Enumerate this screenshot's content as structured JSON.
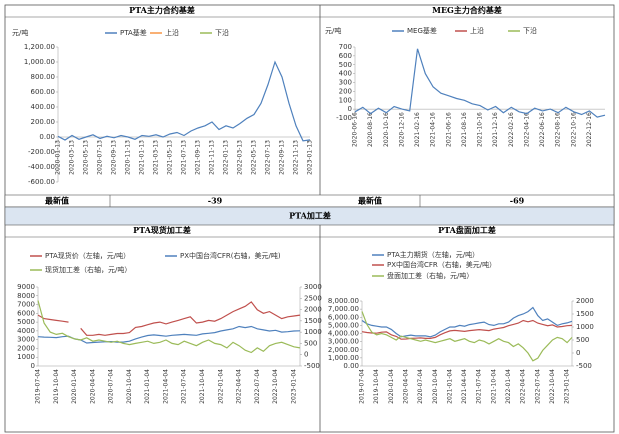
{
  "section_title": "PTA加工差",
  "summary": {
    "label_left": "最新值",
    "value_left": -39,
    "label_right": "最新值",
    "value_right": -69
  },
  "chart_data": [
    {
      "type": "line",
      "title": "PTA主力合约基差",
      "y_label": "元/吨",
      "categories": [
        "2020-01-13",
        null,
        "2020-03-13",
        null,
        "2020-05-13",
        null,
        "2020-07-13",
        null,
        "2020-09-13",
        null,
        "2020-11-13",
        null,
        "2021-01-13",
        null,
        "2021-03-13",
        null,
        "2021-05-13",
        null,
        "2021-07-13",
        null,
        "2021-09-13",
        null,
        "2021-11-13",
        null,
        "2022-01-13",
        null,
        "2022-03-13",
        null,
        "2022-05-13",
        null,
        "2022-07-13",
        null,
        "2022-09-13",
        null,
        "2022-11-13",
        null,
        "2023-01-13"
      ],
      "series": [
        {
          "name": "PTA基差",
          "color": "#4f81bd",
          "values": [
            10,
            -40,
            20,
            -30,
            0,
            30,
            -20,
            10,
            -10,
            20,
            0,
            -30,
            20,
            10,
            30,
            0,
            40,
            60,
            20,
            80,
            120,
            150,
            200,
            100,
            150,
            120,
            180,
            250,
            300,
            450,
            700,
            1000,
            800,
            450,
            150,
            -50,
            -39
          ]
        },
        {
          "name": "上沿",
          "color": "#f79646",
          "values": [
            null,
            null,
            null,
            null,
            null,
            null,
            null,
            null,
            null,
            null,
            null,
            null,
            null,
            null,
            null,
            null,
            null,
            null,
            null,
            null,
            null,
            null,
            null,
            null,
            null,
            null,
            null,
            null,
            null,
            null,
            null,
            null,
            null,
            null,
            null,
            null,
            null
          ]
        },
        {
          "name": "下沿",
          "color": "#9bbb59",
          "values": [
            null,
            null,
            null,
            null,
            null,
            null,
            null,
            null,
            null,
            null,
            null,
            null,
            null,
            null,
            null,
            null,
            null,
            null,
            null,
            null,
            null,
            null,
            null,
            null,
            null,
            null,
            null,
            null,
            null,
            null,
            null,
            null,
            null,
            null,
            null,
            null,
            null
          ]
        }
      ],
      "ylim": [
        -600,
        1200
      ],
      "yticks": [
        {
          "value": -600,
          "label": "-600.00"
        },
        {
          "value": -400,
          "label": "-400.00"
        },
        {
          "value": -200,
          "label": "-200.00"
        },
        {
          "value": 0,
          "label": "0.00"
        },
        {
          "value": 200,
          "label": "200.00"
        },
        {
          "value": 400,
          "label": "400.00"
        },
        {
          "value": 600,
          "label": "600.00"
        },
        {
          "value": 800,
          "label": "800.00"
        },
        {
          "value": 1000,
          "label": "1,000.00"
        },
        {
          "value": 1200,
          "label": "1,200.00"
        }
      ],
      "grid": false
    },
    {
      "type": "line",
      "title": "MEG主力合约基差",
      "y_label": "元/吨",
      "categories": [
        "2020-06-16",
        null,
        "2020-08-16",
        null,
        "2020-10-16",
        null,
        "2020-12-16",
        null,
        "2021-02-16",
        null,
        "2021-04-16",
        null,
        "2021-06-16",
        null,
        "2021-08-16",
        null,
        "2021-10-16",
        null,
        "2021-12-16",
        null,
        "2022-02-16",
        null,
        "2022-04-16",
        null,
        "2022-06-16",
        null,
        "2022-08-16",
        null,
        "2022-10-16",
        null,
        "2022-12-16",
        null,
        null
      ],
      "series": [
        {
          "name": "MEG基差",
          "color": "#4f81bd",
          "values": [
            -30,
            20,
            -50,
            10,
            -40,
            30,
            0,
            -20,
            680,
            400,
            250,
            180,
            150,
            120,
            100,
            60,
            40,
            -10,
            30,
            -40,
            20,
            -30,
            -50,
            10,
            -20,
            0,
            -40,
            20,
            -30,
            -60,
            -20,
            -90,
            -69
          ]
        },
        {
          "name": "上沿",
          "color": "#c0504d",
          "values": [
            null,
            null,
            null,
            null,
            null,
            null,
            null,
            null,
            null,
            null,
            null,
            null,
            null,
            null,
            null,
            null,
            null,
            null,
            null,
            null,
            null,
            null,
            null,
            null,
            null,
            null,
            null,
            null,
            null,
            null,
            null,
            null,
            null
          ]
        },
        {
          "name": "下沿",
          "color": "#9bbb59",
          "values": [
            null,
            null,
            null,
            null,
            null,
            null,
            null,
            null,
            null,
            null,
            null,
            null,
            null,
            null,
            null,
            null,
            null,
            null,
            null,
            null,
            null,
            null,
            null,
            null,
            null,
            null,
            null,
            null,
            null,
            null,
            null,
            null,
            null
          ]
        }
      ],
      "ylim": [
        -100,
        700
      ],
      "yticks": [
        -100,
        0,
        100,
        200,
        300,
        400,
        500,
        600,
        700
      ],
      "grid": false
    },
    {
      "type": "line",
      "title": "PTA现货加工差",
      "categories": [
        "2019-07-04",
        null,
        null,
        "2019-10-04",
        null,
        null,
        "2020-01-04",
        null,
        null,
        "2020-04-04",
        null,
        null,
        "2020-07-04",
        null,
        null,
        "2020-10-04",
        null,
        null,
        "2021-01-04",
        null,
        null,
        "2021-04-04",
        null,
        null,
        "2021-07-04",
        null,
        null,
        "2021-10-04",
        null,
        null,
        "2022-01-04",
        null,
        null,
        "2022-04-04",
        null,
        null,
        "2022-07-04",
        null,
        null,
        "2022-10-04",
        null,
        null,
        "2023-01-04",
        null
      ],
      "series": [
        {
          "name": "PTA现货价（左轴，元/吨）",
          "color": "#c0504d",
          "values": [
            5800,
            5400,
            5300,
            5200,
            5100,
            5000,
            null,
            4300,
            3500,
            3500,
            3600,
            3500,
            3600,
            3700,
            3700,
            3800,
            4400,
            4500,
            4700,
            4900,
            5000,
            4800,
            5000,
            5200,
            5400,
            5600,
            4900,
            5000,
            5200,
            5100,
            5400,
            5800,
            6200,
            6500,
            6800,
            7300,
            6400,
            6000,
            6200,
            5800,
            5400,
            5600,
            5700,
            5800
          ]
        },
        {
          "name": "PX中国台湾CFR(右轴，美元/吨)",
          "color": "#4f81bd",
          "axis": "y2",
          "values": [
            800,
            780,
            770,
            760,
            800,
            820,
            700,
            650,
            520,
            540,
            560,
            570,
            580,
            560,
            560,
            600,
            700,
            780,
            850,
            880,
            850,
            820,
            860,
            880,
            900,
            880,
            860,
            920,
            950,
            980,
            1050,
            1100,
            1150,
            1250,
            1200,
            1250,
            1150,
            1100,
            1050,
            1080,
            1000,
            1020,
            1050,
            1060
          ]
        },
        {
          "name": "现货加工差（右轴，元/吨）",
          "color": "#9bbb59",
          "axis": "y2",
          "values": [
            2400,
            1400,
            1000,
            900,
            950,
            800,
            700,
            650,
            750,
            600,
            650,
            600,
            550,
            600,
            500,
            450,
            500,
            550,
            600,
            500,
            550,
            650,
            500,
            450,
            600,
            500,
            400,
            550,
            650,
            500,
            450,
            300,
            550,
            400,
            200,
            100,
            300,
            150,
            400,
            500,
            550,
            450,
            350,
            300
          ]
        }
      ],
      "ylim": [
        0,
        9000
      ],
      "yticks": [
        0,
        1000,
        2000,
        3000,
        4000,
        5000,
        6000,
        7000,
        8000,
        9000
      ],
      "y2lim": [
        -500,
        3000
      ],
      "y2ticks": [
        -500,
        0,
        500,
        1000,
        1500,
        2000,
        2500,
        3000
      ],
      "grid": false
    },
    {
      "type": "line",
      "title": "PTA盘面加工差",
      "categories": [
        "2019-07-04",
        null,
        null,
        "2019-10-04",
        null,
        null,
        "2020-01-04",
        null,
        null,
        "2020-04-04",
        null,
        null,
        "2020-07-04",
        null,
        null,
        "2020-10-04",
        null,
        null,
        "2021-01-04",
        null,
        null,
        "2021-04-04",
        null,
        null,
        "2021-07-04",
        null,
        null,
        "2021-10-04",
        null,
        null,
        "2022-01-04",
        null,
        null,
        "2022-04-04",
        null,
        null,
        "2022-07-04",
        null,
        null,
        "2022-10-04",
        null,
        null,
        "2023-01-04",
        null
      ],
      "series": [
        {
          "name": "PTA主力期货（左轴，元/吨）",
          "color": "#4f81bd",
          "values": [
            5600,
            5200,
            5000,
            4900,
            4800,
            4800,
            4500,
            4000,
            3600,
            3700,
            3800,
            3700,
            3700,
            3700,
            3600,
            3800,
            4200,
            4500,
            4800,
            4800,
            5000,
            4900,
            5100,
            5200,
            5300,
            5400,
            5100,
            5000,
            5200,
            5200,
            5400,
            5900,
            6200,
            6400,
            6700,
            7200,
            6200,
            5600,
            5800,
            5400,
            5000,
            5200,
            5300,
            5500
          ]
        },
        {
          "name": "PX中国台湾CFR（右轴，美元/吨）",
          "color": "#c0504d",
          "axis": "y2",
          "values": [
            820,
            790,
            770,
            760,
            800,
            810,
            700,
            640,
            530,
            540,
            560,
            570,
            580,
            560,
            560,
            600,
            700,
            780,
            850,
            870,
            850,
            830,
            860,
            880,
            900,
            880,
            860,
            920,
            950,
            980,
            1050,
            1100,
            1150,
            1250,
            1200,
            1250,
            1150,
            1100,
            1050,
            1080,
            1000,
            1020,
            1050,
            1060
          ]
        },
        {
          "name": "盘面加工差（右轴，元/吨）",
          "color": "#9bbb59",
          "axis": "y2",
          "values": [
            1600,
            1100,
            800,
            700,
            750,
            700,
            600,
            500,
            650,
            600,
            550,
            500,
            450,
            500,
            450,
            400,
            450,
            500,
            550,
            450,
            500,
            550,
            450,
            400,
            500,
            450,
            350,
            450,
            550,
            450,
            400,
            250,
            350,
            200,
            0,
            -300,
            -200,
            100,
            300,
            500,
            600,
            550,
            400,
            600
          ]
        }
      ],
      "ylim": [
        0,
        8000
      ],
      "yticks": [
        {
          "value": 0,
          "label": "0.00"
        },
        {
          "value": 1000,
          "label": "1,000.00"
        },
        {
          "value": 2000,
          "label": "2,000.00"
        },
        {
          "value": 3000,
          "label": "3,000.00"
        },
        {
          "value": 4000,
          "label": "4,000.00"
        },
        {
          "value": 5000,
          "label": "5,000.00"
        },
        {
          "value": 6000,
          "label": "6,000.00"
        },
        {
          "value": 7000,
          "label": "7,000.00"
        },
        {
          "value": 8000,
          "label": "8,000.00"
        }
      ],
      "y2lim": [
        -500,
        2000
      ],
      "y2ticks": [
        -500,
        0,
        500,
        1000,
        1500,
        2000
      ],
      "grid": false
    }
  ]
}
